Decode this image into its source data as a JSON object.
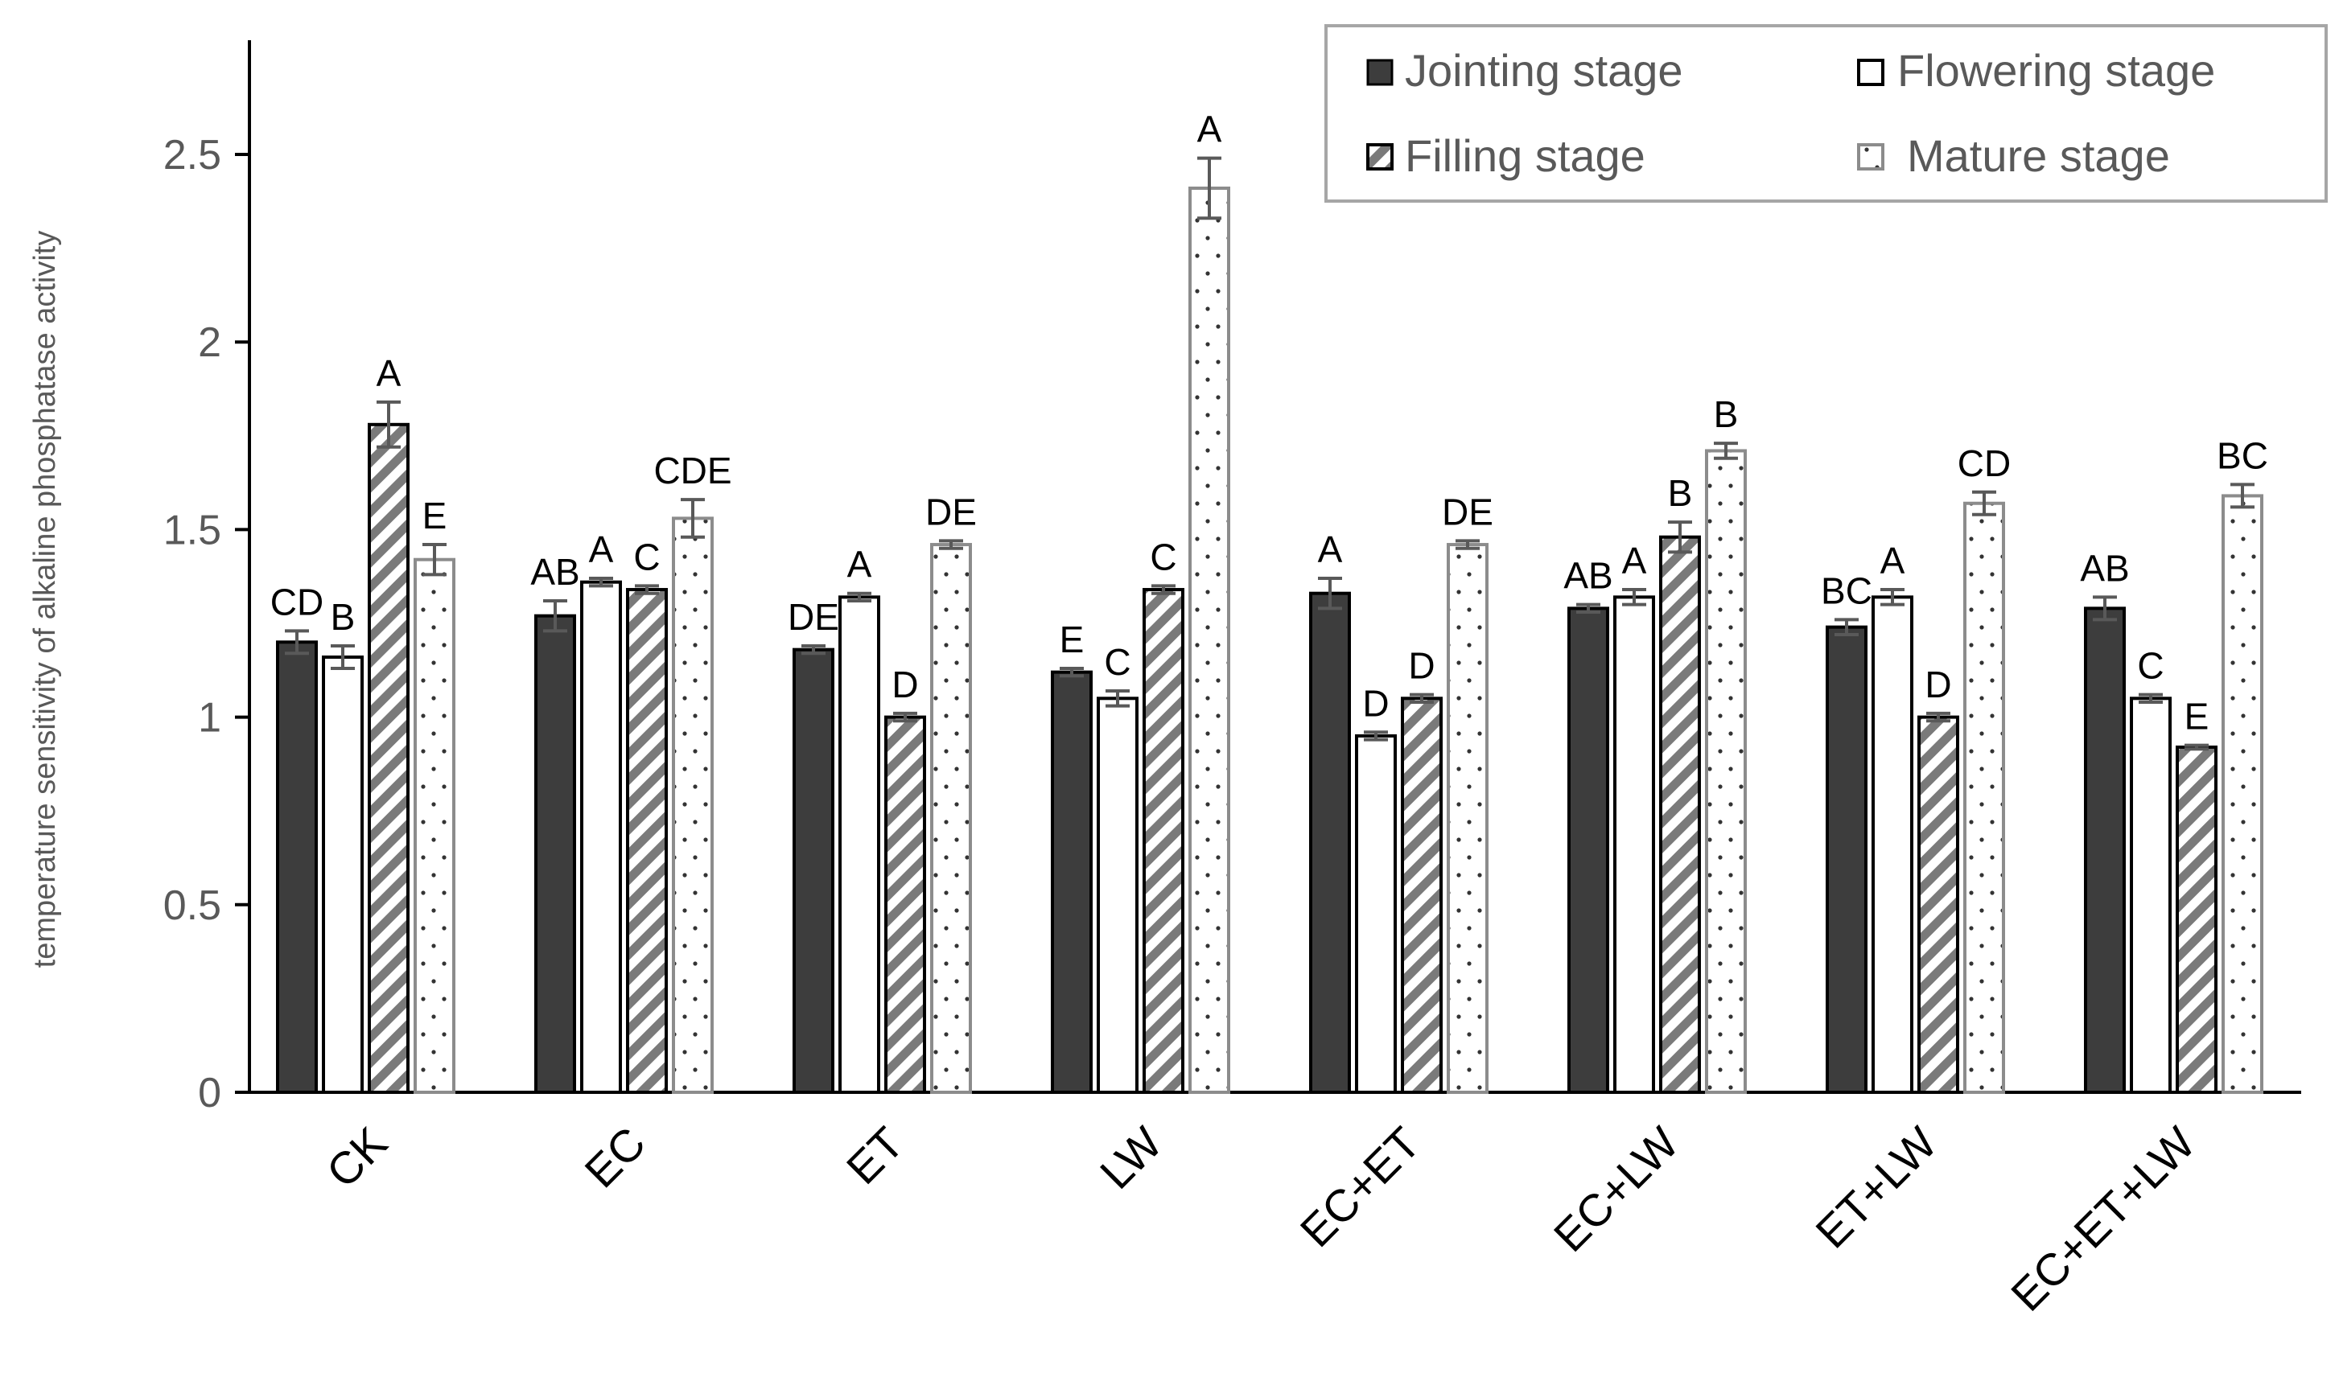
{
  "chart_data": {
    "type": "bar",
    "title": "",
    "xlabel": "",
    "ylabel": "temperature sensitivity of alkaline phosphatase activity",
    "ylim": [
      0,
      2.8
    ],
    "yticks": [
      "0",
      "0.5",
      "1",
      "1.5",
      "2",
      "2.5"
    ],
    "legend_position": "top-right",
    "grid": false,
    "categories": [
      "CK",
      "EC",
      "ET",
      "LW",
      "EC+ET",
      "EC+LW",
      "ET+LW",
      "EC+ET+LW"
    ],
    "series": [
      {
        "name": "Jointing stage",
        "pattern": "solid",
        "values": [
          1.2,
          1.27,
          1.18,
          1.12,
          1.33,
          1.29,
          1.24,
          1.29
        ],
        "errors": [
          0.03,
          0.04,
          0.01,
          0.01,
          0.04,
          0.01,
          0.02,
          0.03
        ],
        "letters": [
          "CD",
          "AB",
          "DE",
          "E",
          "A",
          "AB",
          "BC",
          "AB"
        ]
      },
      {
        "name": "Flowering stage",
        "pattern": "open",
        "values": [
          1.16,
          1.36,
          1.32,
          1.05,
          0.95,
          1.32,
          1.32,
          1.05
        ],
        "errors": [
          0.03,
          0.01,
          0.01,
          0.02,
          0.01,
          0.02,
          0.02,
          0.01
        ],
        "letters": [
          "B",
          "A",
          "A",
          "C",
          "D",
          "A",
          "A",
          "C"
        ]
      },
      {
        "name": "Filling stage",
        "pattern": "hatched",
        "values": [
          1.78,
          1.34,
          1.0,
          1.34,
          1.05,
          1.48,
          1.0,
          0.92
        ],
        "errors": [
          0.06,
          0.01,
          0.01,
          0.01,
          0.01,
          0.04,
          0.01,
          0.005
        ],
        "letters": [
          "A",
          "C",
          "D",
          "C",
          "D",
          "B",
          "D",
          "E"
        ]
      },
      {
        "name": "Mature stage",
        "pattern": "dotted",
        "values": [
          1.42,
          1.53,
          1.46,
          2.41,
          1.46,
          1.71,
          1.57,
          1.59
        ],
        "errors": [
          0.04,
          0.05,
          0.01,
          0.08,
          0.01,
          0.02,
          0.03,
          0.03
        ],
        "letters": [
          "E",
          "CDE",
          "DE",
          "A",
          "DE",
          "B",
          "CD",
          "BC"
        ]
      }
    ]
  },
  "colors": {
    "jointing_fill": "#3d3d3d",
    "hatch_stroke": "#7a7a7a",
    "mature_border": "#8c8c8c",
    "error_bar": "#595959",
    "axis": "#000000"
  }
}
